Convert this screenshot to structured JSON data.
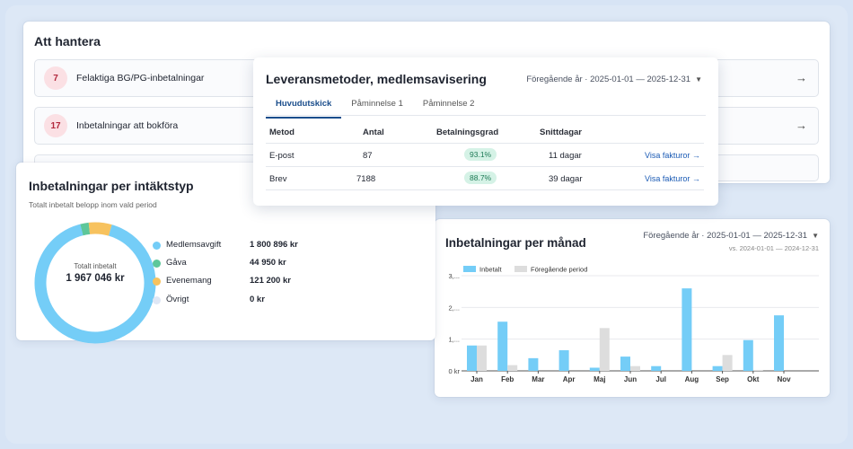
{
  "todo": {
    "title": "Att hantera",
    "items": [
      {
        "count": "7",
        "label": "Felaktiga BG/PG-inbetalningar"
      },
      {
        "count": "17",
        "label": "Inbetalningar att bokföra"
      }
    ],
    "arrow": "→"
  },
  "delivery": {
    "title": "Leveransmetoder, medlemsavisering",
    "period": "Föregående år · 2025-01-01 — 2025-12-31",
    "tabs": [
      "Huvudutskick",
      "Påminnelse 1",
      "Påminnelse 2"
    ],
    "columns": {
      "method": "Metod",
      "count": "Antal",
      "rate": "Betalningsgrad",
      "days": "Snittdagar"
    },
    "rows": [
      {
        "method": "E-post",
        "count": "87",
        "rate": "93.1%",
        "days": "11 dagar",
        "link": "Visa fakturor →"
      },
      {
        "method": "Brev",
        "count": "7188",
        "rate": "88.7%",
        "days": "39 dagar",
        "link": "Visa fakturor →"
      }
    ]
  },
  "types": {
    "title": "Inbetalningar per intäktstyp",
    "subtitle": "Totalt inbetalt belopp inom vald period",
    "total_label": "Totalt inbetalt",
    "total_value": "1 967 046 kr",
    "items": [
      {
        "name": "Medlemsavgift",
        "value": "1 800 896 kr",
        "amount": 1800896,
        "color": "#74cdf7"
      },
      {
        "name": "Gåva",
        "value": "44 950 kr",
        "amount": 44950,
        "color": "#5dc79a"
      },
      {
        "name": "Evenemang",
        "value": "121 200 kr",
        "amount": 121200,
        "color": "#f7c25e"
      },
      {
        "name": "Övrigt",
        "value": "0 kr",
        "amount": 0,
        "color": "#dfe7f5"
      }
    ]
  },
  "monthly": {
    "title": "Inbetalningar per månad",
    "period": "Föregående år · 2025-01-01 — 2025-12-31",
    "compare": "vs. 2024-01-01 — 2024-12-31",
    "colors": {
      "current": "#74cdf7",
      "previous": "#dddddd"
    }
  },
  "chart_data": {
    "type": "bar",
    "categories": [
      "Jan",
      "Feb",
      "Mar",
      "Apr",
      "Maj",
      "Jun",
      "Jul",
      "Aug",
      "Sep",
      "Okt",
      "Nov"
    ],
    "series": [
      {
        "name": "Inbetalt",
        "values": [
          0.8,
          1.55,
          0.4,
          0.65,
          0.1,
          0.45,
          0.15,
          2.6,
          0.15,
          0.97,
          1.75
        ]
      },
      {
        "name": "Föregående period",
        "values": [
          0.8,
          0.18,
          0,
          0,
          1.35,
          0.15,
          0,
          0,
          0.5,
          0.03,
          0
        ]
      }
    ],
    "yticks": [
      "0 kr",
      "1,...",
      "2,...",
      "3,..."
    ],
    "ylim": [
      0,
      3
    ],
    "legend": "top-left",
    "grid": true
  }
}
